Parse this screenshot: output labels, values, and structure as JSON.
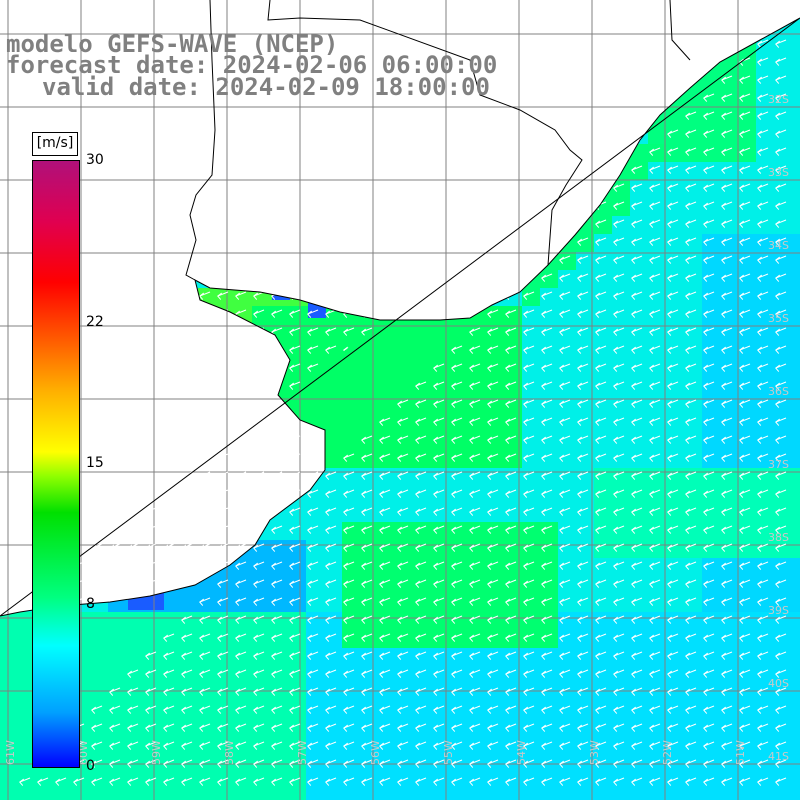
{
  "titles": {
    "model": "modelo GEFS-WAVE (NCEP)",
    "forecast": "forecast date: 2024-02-06 06:00:00",
    "valid": "valid date: 2024-02-09 18:00:00"
  },
  "colorbar": {
    "unit": "[m/s]",
    "ticks": [
      {
        "value": 30,
        "label": "30"
      },
      {
        "value": 22,
        "label": "22"
      },
      {
        "value": 15,
        "label": "15"
      },
      {
        "value": 8,
        "label": "8"
      },
      {
        "value": 0,
        "label": "0"
      }
    ],
    "range": [
      0,
      30
    ]
  },
  "map": {
    "lat_labels": [
      "32S",
      "33S",
      "34S",
      "35S",
      "36S",
      "37S",
      "38S",
      "39S",
      "40S",
      "41S"
    ],
    "lon_labels": [
      "61W",
      "60W",
      "59W",
      "58W",
      "57W",
      "56W",
      "55W",
      "54W",
      "53W",
      "52W",
      "51W"
    ],
    "wind_direction": "from east / north-east (arrows point west-southwest)",
    "colors": {
      "land": "#ffffff",
      "grid": "#808080",
      "coast": "#000000",
      "arrows": "#ffffff"
    }
  }
}
